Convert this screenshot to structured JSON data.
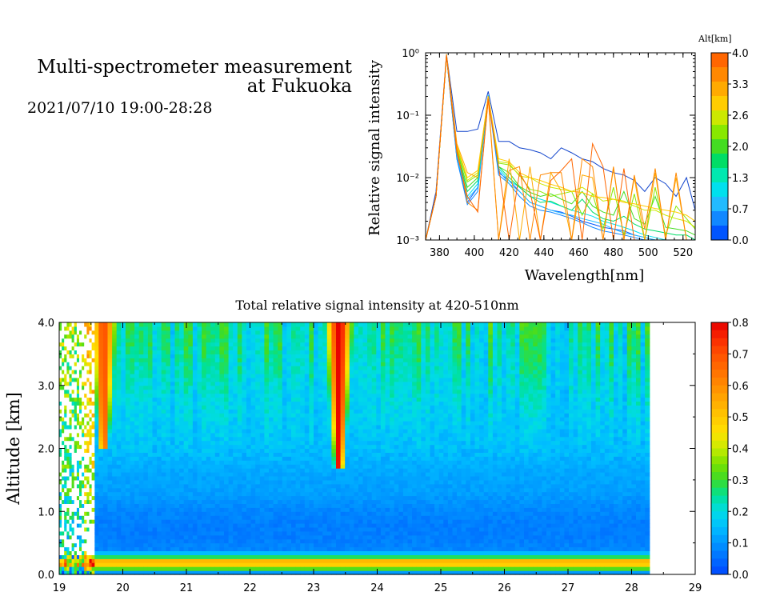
{
  "header": {
    "title_line1": "Multi-spectrometer measurement",
    "title_line2": "at Fukuoka",
    "datetime": "2021/07/10 19:00-28:28"
  },
  "chart_data": [
    {
      "type": "line",
      "xlabel": "Wavelength[nm]",
      "ylabel": "Relative signal intensity",
      "xlim": [
        372,
        527
      ],
      "ylim": [
        0.001,
        1
      ],
      "yscale": "log",
      "x_ticks": [
        "380",
        "400",
        "420",
        "440",
        "460",
        "480",
        "500",
        "520"
      ],
      "y_ticks": [
        "10⁰",
        "10⁻¹",
        "10⁻²",
        "10⁻³"
      ],
      "colorbar": {
        "label": "Alt[km]",
        "ticks": [
          "4.0",
          "3.3",
          "2.6",
          "2.0",
          "1.3",
          "0.7",
          "0.0"
        ],
        "colors": [
          "#ff6600",
          "#ff8800",
          "#ffaa00",
          "#ffcc00",
          "#cce800",
          "#88e800",
          "#44dd22",
          "#00dd66",
          "#00e8b0",
          "#00e0ee",
          "#22bbff",
          "#1188ff",
          "#0055ff"
        ]
      },
      "x": [
        372,
        378,
        384,
        390,
        396,
        402,
        408,
        414,
        420,
        426,
        432,
        438,
        444,
        450,
        456,
        462,
        468,
        474,
        480,
        486,
        492,
        498,
        504,
        510,
        516,
        522,
        527
      ],
      "series": [
        {
          "color": "#1144cc",
          "values": [
            0.001,
            0.006,
            0.95,
            0.055,
            0.055,
            0.06,
            0.24,
            0.038,
            0.038,
            0.03,
            0.028,
            0.025,
            0.02,
            0.03,
            0.025,
            0.02,
            0.018,
            0.014,
            0.012,
            0.011,
            0.009,
            0.006,
            0.01,
            0.008,
            0.005,
            0.01,
            0.003
          ]
        },
        {
          "color": "#0055ff",
          "values": [
            0.001,
            0.005,
            0.9,
            0.02,
            0.004,
            0.007,
            0.2,
            0.012,
            0.009,
            0.006,
            0.004,
            0.0035,
            0.003,
            0.0028,
            0.0024,
            0.002,
            0.0018,
            0.0016,
            0.0015,
            0.0014,
            0.0012,
            0.0011,
            0.001,
            0.001,
            0.001,
            0.001,
            0.001
          ]
        },
        {
          "color": "#1188ff",
          "values": [
            0.001,
            0.005,
            0.9,
            0.02,
            0.0037,
            0.006,
            0.19,
            0.011,
            0.008,
            0.005,
            0.0035,
            0.003,
            0.0028,
            0.0025,
            0.0022,
            0.0019,
            0.0016,
            0.0014,
            0.0013,
            0.0012,
            0.0011,
            0.001,
            0.001,
            0.001,
            0.001,
            0.001,
            0.001
          ]
        },
        {
          "color": "#22bbff",
          "values": [
            0.001,
            0.005,
            0.88,
            0.022,
            0.0045,
            0.007,
            0.2,
            0.013,
            0.008,
            0.006,
            0.004,
            0.0035,
            0.003,
            0.0027,
            0.0025,
            0.0022,
            0.002,
            0.0018,
            0.0015,
            0.0013,
            0.0012,
            0.0011,
            0.001,
            0.001,
            0.001,
            0.001,
            0.001
          ]
        },
        {
          "color": "#00e0ee",
          "values": [
            0.001,
            0.005,
            0.9,
            0.025,
            0.005,
            0.008,
            0.21,
            0.014,
            0.009,
            0.007,
            0.005,
            0.0045,
            0.004,
            0.0035,
            0.003,
            0.0027,
            0.0024,
            0.002,
            0.0018,
            0.0016,
            0.0014,
            0.0012,
            0.0011,
            0.001,
            0.001,
            0.001,
            0.001
          ]
        },
        {
          "color": "#00dd66",
          "values": [
            0.001,
            0.005,
            0.9,
            0.026,
            0.006,
            0.009,
            0.2,
            0.015,
            0.01,
            0.007,
            0.005,
            0.004,
            0.0042,
            0.0035,
            0.003,
            0.0045,
            0.0028,
            0.0022,
            0.002,
            0.0024,
            0.0018,
            0.0015,
            0.0014,
            0.0013,
            0.0012,
            0.0012,
            0.001
          ]
        },
        {
          "color": "#44dd22",
          "values": [
            0.001,
            0.005,
            0.88,
            0.028,
            0.007,
            0.01,
            0.2,
            0.015,
            0.012,
            0.0072,
            0.0058,
            0.005,
            0.0055,
            0.0045,
            0.0038,
            0.006,
            0.0035,
            0.0028,
            0.0025,
            0.006,
            0.0022,
            0.0018,
            0.005,
            0.0016,
            0.0015,
            0.0014,
            0.0012
          ]
        },
        {
          "color": "#88e800",
          "values": [
            0.001,
            0.005,
            0.9,
            0.03,
            0.0085,
            0.011,
            0.2,
            0.017,
            0.016,
            0.011,
            0.0065,
            0.006,
            0.005,
            0.0055,
            0.006,
            0.0025,
            0.0055,
            0.0015,
            0.007,
            0.0012,
            0.0055,
            0.001,
            0.007,
            0.0012,
            0.0035,
            0.0022,
            0.0015
          ]
        },
        {
          "color": "#cce800",
          "values": [
            0.001,
            0.005,
            0.88,
            0.032,
            0.009,
            0.012,
            0.2,
            0.018,
            0.017,
            0.0105,
            0.01,
            0.008,
            0.007,
            0.0065,
            0.006,
            0.007,
            0.0055,
            0.0042,
            0.0045,
            0.0042,
            0.0035,
            0.003,
            0.003,
            0.0025,
            0.0022,
            0.002,
            0.0016
          ]
        },
        {
          "color": "#ffcc00",
          "values": [
            0.001,
            0.005,
            0.9,
            0.033,
            0.01,
            0.013,
            0.2,
            0.02,
            0.018,
            0.012,
            0.01,
            0.009,
            0.0078,
            0.007,
            0.006,
            0.0058,
            0.005,
            0.0048,
            0.0045,
            0.004,
            0.0038,
            0.0035,
            0.0032,
            0.003,
            0.0028,
            0.0025,
            0.002
          ]
        },
        {
          "color": "#ffaa00",
          "values": [
            0.001,
            0.005,
            0.95,
            0.035,
            0.012,
            0.01,
            0.2,
            0.001,
            0.02,
            0.001,
            0.015,
            0.001,
            0.012,
            0.006,
            0.001,
            0.011,
            0.01,
            0.001,
            0.014,
            0.001,
            0.01,
            0.001,
            0.012,
            0.001,
            0.01,
            0.001,
            0.001
          ]
        },
        {
          "color": "#ff8800",
          "values": [
            0.001,
            0.005,
            0.92,
            0.03,
            0.004,
            0.003,
            0.18,
            0.001,
            0.013,
            0.015,
            0.001,
            0.011,
            0.012,
            0.012,
            0.001,
            0.02,
            0.015,
            0.001,
            0.015,
            0.001,
            0.011,
            0.0015,
            0.014,
            0.001,
            0.012,
            0.001,
            0.001
          ]
        },
        {
          "color": "#ff6600",
          "values": [
            0.001,
            0.005,
            0.9,
            0.025,
            0.005,
            0.0028,
            0.18,
            0.015,
            0.001,
            0.012,
            0.006,
            0.001,
            0.009,
            0.013,
            0.02,
            0.001,
            0.035,
            0.015,
            0.001,
            0.014,
            0.001,
            0.001,
            0.001,
            0.001,
            0.001,
            0.001,
            0.001
          ]
        }
      ]
    },
    {
      "type": "heatmap",
      "title": "Total relative signal intensity at 420-510nm",
      "xlabel": "",
      "ylabel": "Altitude [km]",
      "xlim": [
        19,
        29
      ],
      "ylim": [
        0.0,
        4.0
      ],
      "x_ticks": [
        "19",
        "20",
        "21",
        "22",
        "23",
        "24",
        "25",
        "26",
        "27",
        "28",
        "29"
      ],
      "y_ticks": [
        "0.0",
        "1.0",
        "2.0",
        "3.0",
        "4.0"
      ],
      "data_time_range": [
        19.0,
        28.28
      ],
      "colorbar": {
        "ticks": [
          "0.0",
          "0.1",
          "0.2",
          "0.3",
          "0.4",
          "0.5",
          "0.6",
          "0.7",
          "0.8"
        ],
        "range": [
          0.0,
          0.8
        ]
      },
      "altitude_profile": {
        "altitude_km": [
          0.0,
          0.1,
          0.2,
          0.3,
          0.4,
          0.6,
          0.8,
          1.0,
          1.3,
          1.6,
          2.0,
          2.5,
          3.0,
          3.5,
          4.0
        ],
        "typical_intensity": [
          0.0,
          0.34,
          0.6,
          0.2,
          0.08,
          0.07,
          0.07,
          0.08,
          0.11,
          0.12,
          0.15,
          0.17,
          0.19,
          0.21,
          0.22
        ]
      },
      "features": [
        {
          "time": 23.4,
          "altitude_range_km": [
            1.7,
            4.0
          ],
          "peak_intensity": 0.8
        },
        {
          "time": 19.7,
          "altitude_range_km": [
            2.0,
            4.0
          ],
          "peak_intensity": 0.7
        }
      ]
    }
  ]
}
